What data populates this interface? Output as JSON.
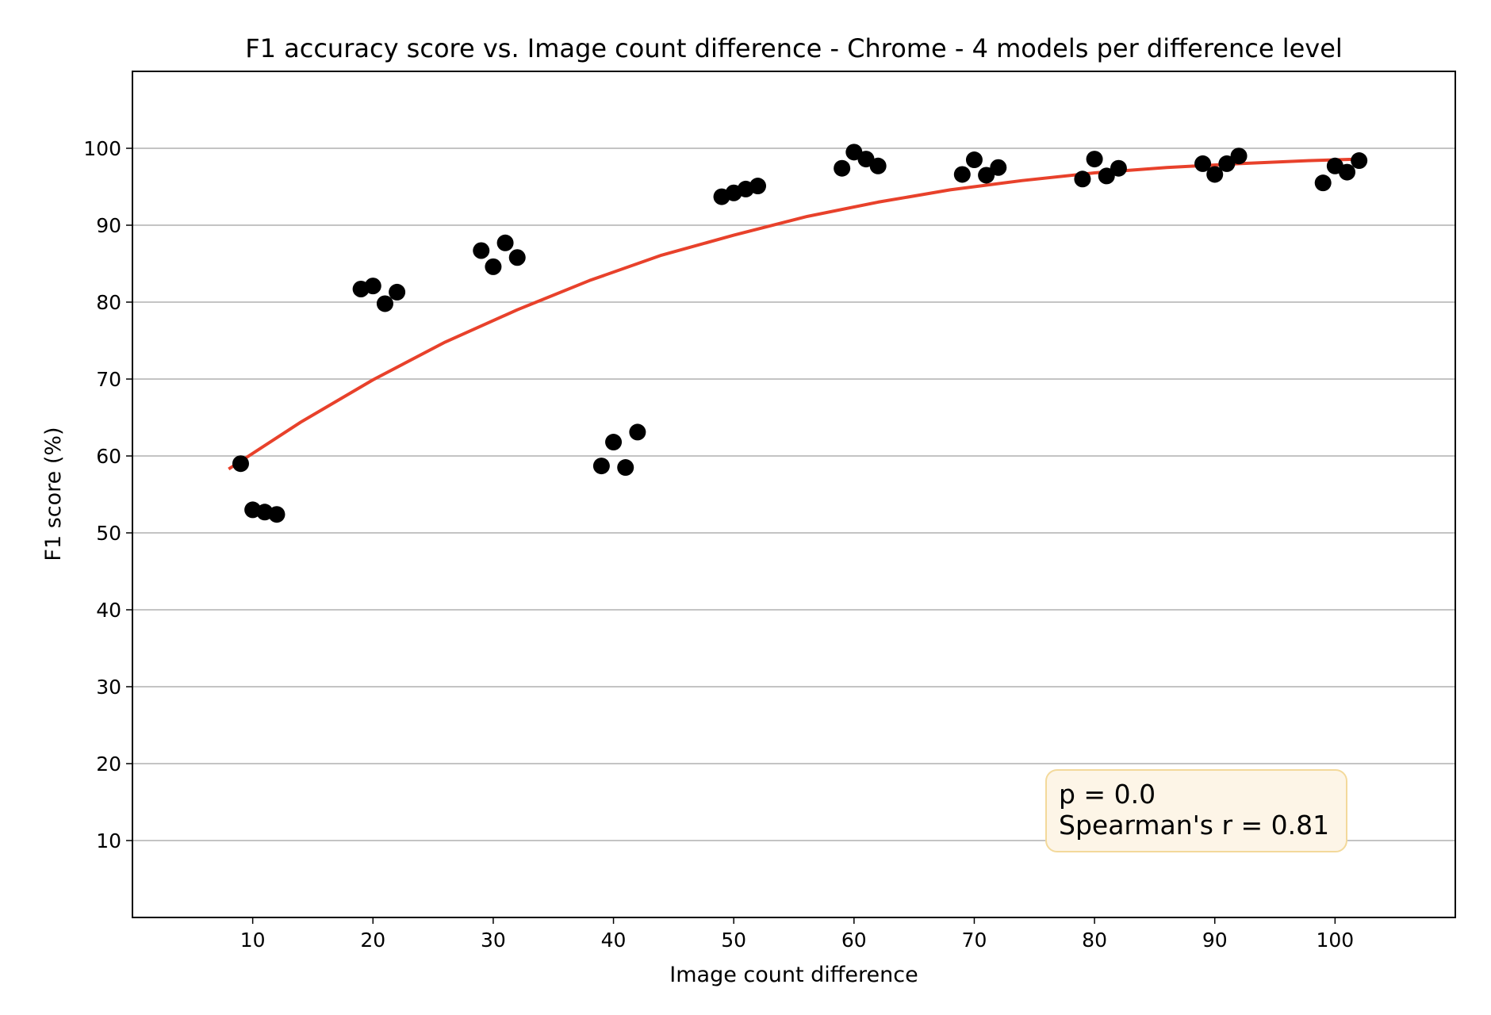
{
  "chart_data": {
    "type": "scatter",
    "title": "F1 accuracy score vs. Image count difference - Chrome - 4 models per difference level",
    "xlabel": "Image count difference",
    "ylabel": "F1 score (%)",
    "xlim": [
      0,
      110
    ],
    "ylim": [
      0,
      110
    ],
    "xticks": [
      "10",
      "20",
      "30",
      "40",
      "50",
      "60",
      "70",
      "80",
      "90",
      "100"
    ],
    "yticks": [
      "10",
      "20",
      "30",
      "40",
      "50",
      "60",
      "70",
      "80",
      "90",
      "100"
    ],
    "grid": "horizontal",
    "points": [
      {
        "x": 9,
        "y": 59.0
      },
      {
        "x": 10,
        "y": 53.0
      },
      {
        "x": 11,
        "y": 52.7
      },
      {
        "x": 12,
        "y": 52.4
      },
      {
        "x": 19,
        "y": 81.7
      },
      {
        "x": 20,
        "y": 82.1
      },
      {
        "x": 21,
        "y": 79.8
      },
      {
        "x": 22,
        "y": 81.3
      },
      {
        "x": 29,
        "y": 86.7
      },
      {
        "x": 30,
        "y": 84.6
      },
      {
        "x": 31,
        "y": 87.7
      },
      {
        "x": 32,
        "y": 85.8
      },
      {
        "x": 39,
        "y": 58.7
      },
      {
        "x": 40,
        "y": 61.8
      },
      {
        "x": 41,
        "y": 58.5
      },
      {
        "x": 42,
        "y": 63.1
      },
      {
        "x": 49,
        "y": 93.7
      },
      {
        "x": 50,
        "y": 94.2
      },
      {
        "x": 51,
        "y": 94.7
      },
      {
        "x": 52,
        "y": 95.1
      },
      {
        "x": 59,
        "y": 97.4
      },
      {
        "x": 60,
        "y": 99.5
      },
      {
        "x": 61,
        "y": 98.6
      },
      {
        "x": 62,
        "y": 97.7
      },
      {
        "x": 69,
        "y": 96.6
      },
      {
        "x": 70,
        "y": 98.5
      },
      {
        "x": 71,
        "y": 96.5
      },
      {
        "x": 72,
        "y": 97.5
      },
      {
        "x": 79,
        "y": 96.0
      },
      {
        "x": 80,
        "y": 98.6
      },
      {
        "x": 81,
        "y": 96.4
      },
      {
        "x": 82,
        "y": 97.4
      },
      {
        "x": 89,
        "y": 98.0
      },
      {
        "x": 90,
        "y": 96.6
      },
      {
        "x": 91,
        "y": 98.0
      },
      {
        "x": 92,
        "y": 99.0
      },
      {
        "x": 99,
        "y": 95.5
      },
      {
        "x": 100,
        "y": 97.7
      },
      {
        "x": 101,
        "y": 96.9
      },
      {
        "x": 102,
        "y": 98.4
      }
    ],
    "fit_line": {
      "x": [
        8,
        14,
        20,
        26,
        32,
        38,
        44,
        50,
        56,
        62,
        68,
        74,
        80,
        86,
        92,
        98,
        102
      ],
      "y": [
        58.3,
        64.4,
        69.9,
        74.8,
        79.0,
        82.8,
        86.1,
        88.7,
        91.1,
        93.0,
        94.6,
        95.8,
        96.8,
        97.5,
        98.0,
        98.4,
        98.6
      ]
    },
    "annotation": {
      "lines": [
        "p = 0.0",
        "Spearman's r = 0.81"
      ],
      "location": "lower-right"
    },
    "colors": {
      "points": "#000000",
      "fit_line": "#e8412b",
      "grid": "#b0b0b0",
      "annotation_fill": "#fdf5e7",
      "annotation_border": "#f3d99b"
    }
  }
}
